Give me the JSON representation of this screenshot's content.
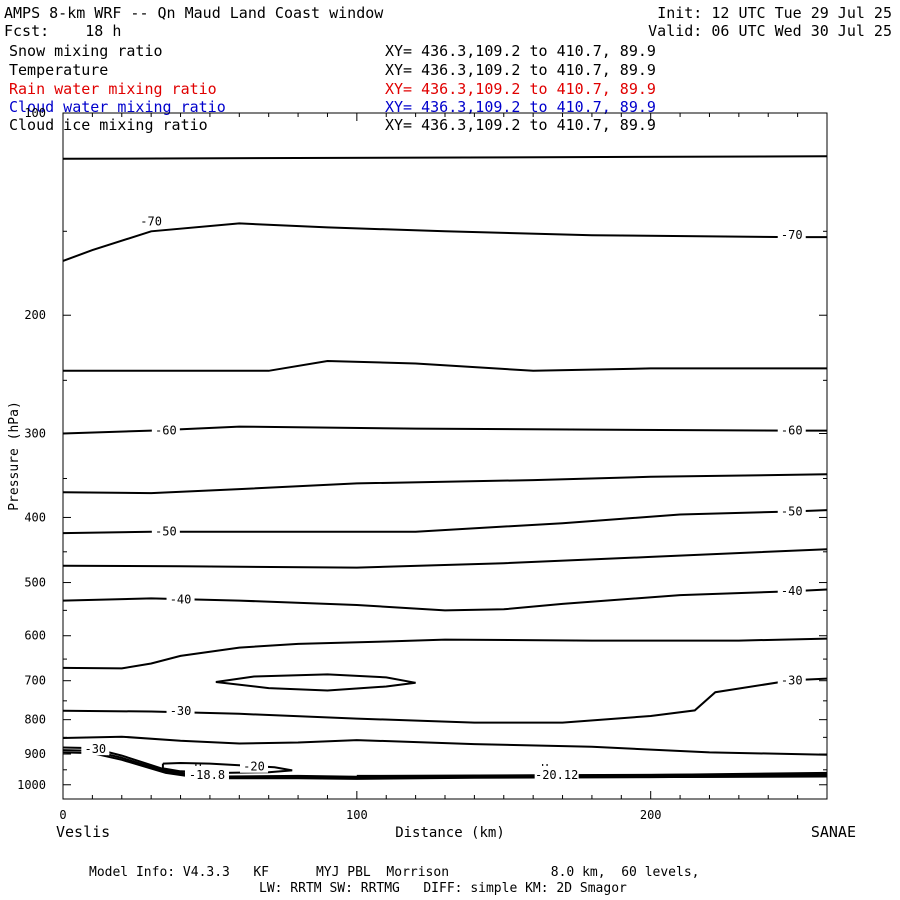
{
  "header": {
    "title": "AMPS 8-km WRF -- Qn Maud Land Coast window",
    "fcst": "Fcst:    18 h",
    "init": "Init: 12 UTC Tue 29 Jul 25",
    "valid": "Valid: 06 UTC Wed 30 Jul 25"
  },
  "legend": [
    {
      "name": "Snow mixing ratio",
      "coords": "XY= 436.3,109.2 to 410.7, 89.9",
      "color": "#000000"
    },
    {
      "name": "Temperature",
      "coords": "XY= 436.3,109.2 to 410.7, 89.9",
      "color": "#000000"
    },
    {
      "name": "Rain water mixing ratio",
      "coords": "XY= 436.3,109.2 to 410.7, 89.9",
      "color": "#e00000"
    },
    {
      "name": "Cloud water mixing ratio",
      "coords": "XY= 436.3,109.2 to 410.7, 89.9",
      "color": "#0000cc"
    },
    {
      "name": "Cloud ice mixing ratio",
      "coords": "XY= 436.3,109.2 to 410.7, 89.9",
      "color": "#000000"
    }
  ],
  "footer": {
    "line1": "Model Info: V4.3.3   KF      MYJ PBL  Morrison             8.0 km,  60 levels,",
    "line2": "LW: RRTM SW: RRTMG   DIFF: simple KM: 2D Smagor"
  },
  "endpoints": {
    "left": "Veslis",
    "right": "SANAE"
  },
  "chart_data": {
    "type": "line",
    "xlabel": "Distance (km)",
    "ylabel": "Pressure (hPa)",
    "xlim": [
      0,
      260
    ],
    "ylim": [
      1050,
      100
    ],
    "x_ticks": [
      0,
      100,
      200
    ],
    "y_ticks": [
      100,
      200,
      300,
      400,
      500,
      600,
      700,
      800,
      900,
      1000
    ],
    "y_scale": "log",
    "grid": false,
    "contour_labels": [
      {
        "text": "-70",
        "x": 30,
        "p": 145
      },
      {
        "text": "-70",
        "x": 248,
        "p": 152
      },
      {
        "text": "-60",
        "x": 35,
        "p": 297
      },
      {
        "text": "-60",
        "x": 248,
        "p": 297
      },
      {
        "text": "-50",
        "x": 35,
        "p": 420
      },
      {
        "text": "-50",
        "x": 248,
        "p": 392
      },
      {
        "text": "-40",
        "x": 40,
        "p": 530
      },
      {
        "text": "-40",
        "x": 248,
        "p": 515
      },
      {
        "text": "-30",
        "x": 40,
        "p": 776
      },
      {
        "text": "-30",
        "x": 248,
        "p": 699
      },
      {
        "text": "-30",
        "x": 11,
        "p": 885
      },
      {
        "text": "-20",
        "x": 65,
        "p": 940
      }
    ],
    "extrema": [
      {
        "text": "H",
        "x": 46,
        "p": 947
      },
      {
        "text": "-18.8",
        "x": 49,
        "p": 967
      },
      {
        "text": "H",
        "x": 164,
        "p": 948
      },
      {
        "text": "-20.12",
        "x": 168,
        "p": 967
      }
    ],
    "contours": [
      {
        "x": [
          0,
          260
        ],
        "p": [
          117,
          116
        ]
      },
      {
        "x": [
          0,
          10,
          30,
          60,
          90,
          130,
          180,
          248,
          260
        ],
        "p": [
          166,
          160,
          150,
          146,
          148,
          150,
          152,
          153,
          153
        ]
      },
      {
        "x": [
          0,
          70,
          90,
          120,
          160,
          200,
          260
        ],
        "p": [
          242,
          242,
          234,
          236,
          242,
          240,
          240
        ]
      },
      {
        "x": [
          0,
          30,
          60,
          120,
          180,
          248,
          260
        ],
        "p": [
          300,
          297,
          293,
          295,
          296,
          297,
          297
        ]
      },
      {
        "x": [
          0,
          30,
          60,
          100,
          160,
          200,
          260
        ],
        "p": [
          367,
          368,
          363,
          356,
          352,
          348,
          345
        ]
      },
      {
        "x": [
          0,
          30,
          60,
          120,
          170,
          210,
          248,
          260
        ],
        "p": [
          422,
          420,
          420,
          420,
          408,
          396,
          392,
          390
        ]
      },
      {
        "x": [
          0,
          40,
          100,
          150,
          200,
          260
        ],
        "p": [
          472,
          473,
          475,
          468,
          458,
          446
        ]
      },
      {
        "x": [
          0,
          30,
          60,
          100,
          130,
          150,
          170,
          210,
          248,
          260
        ],
        "p": [
          532,
          528,
          532,
          540,
          550,
          548,
          538,
          522,
          515,
          512
        ]
      },
      {
        "x": [
          0,
          20,
          30,
          40,
          60,
          80,
          110,
          130,
          180,
          230,
          260
        ],
        "p": [
          670,
          671,
          660,
          643,
          625,
          617,
          612,
          608,
          610,
          610,
          606
        ]
      },
      {
        "x": [
          52,
          65,
          90,
          110,
          120,
          110,
          90,
          70,
          52
        ],
        "p": [
          703,
          690,
          685,
          692,
          705,
          714,
          724,
          718,
          703
        ]
      },
      {
        "x": [
          0,
          30,
          60,
          100,
          140,
          170,
          200,
          215,
          222,
          248,
          260
        ],
        "p": [
          776,
          778,
          784,
          797,
          808,
          808,
          790,
          775,
          728,
          699,
          695
        ]
      },
      {
        "x": [
          0,
          10,
          20,
          40,
          60,
          80,
          100,
          140,
          180,
          220,
          260
        ],
        "p": [
          852,
          850,
          848,
          860,
          868,
          865,
          858,
          870,
          878,
          895,
          902
        ]
      },
      {
        "x": [
          0,
          10,
          20,
          35,
          45,
          55,
          80,
          100,
          140,
          200,
          260
        ],
        "p": [
          888,
          890,
          912,
          955,
          970,
          975,
          972,
          975,
          972,
          970,
          964
        ]
      },
      {
        "x": [
          0,
          10,
          20,
          35,
          45,
          55,
          80,
          100,
          140,
          200,
          260
        ],
        "p": [
          880,
          882,
          905,
          950,
          968,
          972,
          970,
          973,
          970,
          967,
          960
        ]
      },
      {
        "x": [
          0,
          10,
          20,
          35,
          45,
          55,
          80,
          100,
          140,
          200,
          260
        ],
        "p": [
          895,
          897,
          918,
          960,
          974,
          978,
          978,
          980,
          976,
          974,
          970
        ]
      },
      {
        "x": [
          34,
          40,
          50,
          60,
          72,
          78,
          70,
          55,
          40,
          34,
          34
        ],
        "p": [
          930,
          928,
          930,
          935,
          942,
          952,
          958,
          960,
          955,
          945,
          930
        ]
      },
      {
        "x": [
          100,
          160,
          260
        ],
        "p": [
          970,
          968,
          964
        ]
      },
      {
        "x": [
          100,
          160,
          260
        ],
        "p": [
          973,
          972,
          968
        ]
      },
      {
        "x": [
          160,
          260
        ],
        "p": [
          975,
          972
        ]
      }
    ]
  }
}
